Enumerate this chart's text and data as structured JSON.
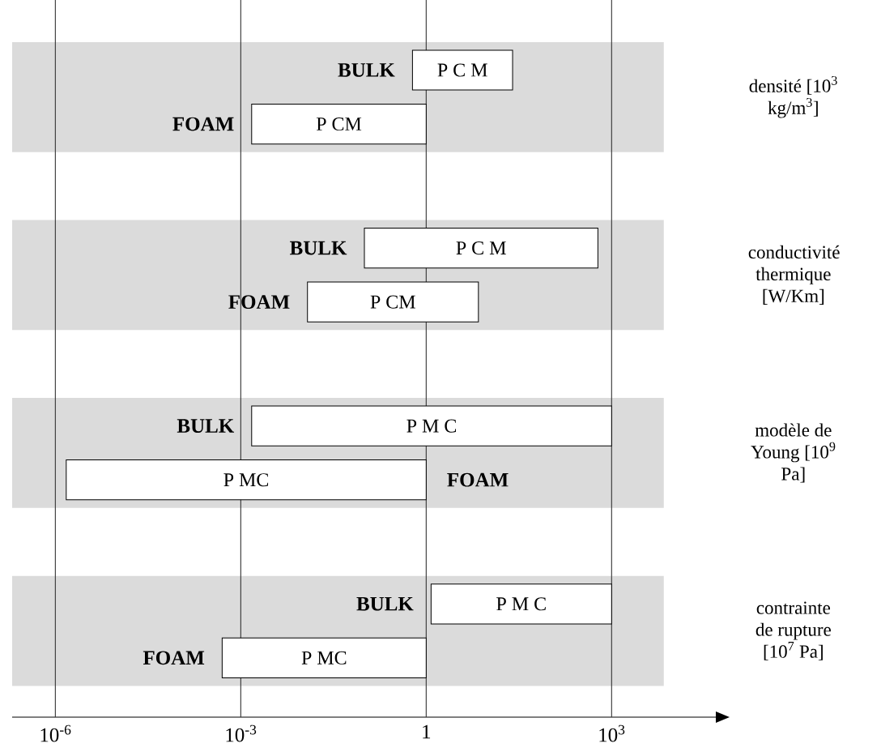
{
  "chart_data": {
    "type": "bar",
    "orientation": "horizontal",
    "log": "x",
    "categories": [
      null,
      null,
      null,
      null,
      null,
      null,
      null,
      null
    ],
    "xlim": [
      2e-07,
      50000
    ],
    "xticks": [
      {
        "value": 1e-06,
        "label": "10$^{-6}$"
      },
      {
        "value": 0.001,
        "label": "10$^{-3}$"
      },
      1,
      {
        "value": 1000,
        "label": "10$^{3}$"
      }
    ],
    "grid": "x",
    "series": [
      {
        "name": "BULK",
        "color": "#ffffff",
        "base": [
          0.6,
          null,
          0.1,
          null,
          0.0015,
          null,
          1.2,
          null
        ],
        "values": [
          24.4,
          null,
          599.9,
          null,
          999.9985,
          null,
          998.8,
          null
        ],
        "value_labels": [
          "P C M",
          null,
          "P C M",
          null,
          "P M C",
          null,
          "P M C",
          null
        ]
      },
      {
        "name": "FOAM",
        "color": "#ffffff",
        "base": [
          null,
          0.0015,
          null,
          0.012,
          null,
          1.5e-06,
          null,
          0.0005
        ],
        "values": [
          null,
          0.9985,
          null,
          6.988,
          null,
          0.9999985,
          null,
          0.9995
        ],
        "value_labels": [
          null,
          "P CM",
          null,
          "P CM",
          null,
          "P MC",
          null,
          "P MC"
        ]
      }
    ],
    "annotations": [
      "densité [10$^{3}$ kg/m$^{3}$]",
      "conductivité thermique [W/Km]",
      "modèle de Young [10$^{9}$ Pa]",
      "contrainte de rupture [10$^{7}$ Pa]"
    ]
  }
}
